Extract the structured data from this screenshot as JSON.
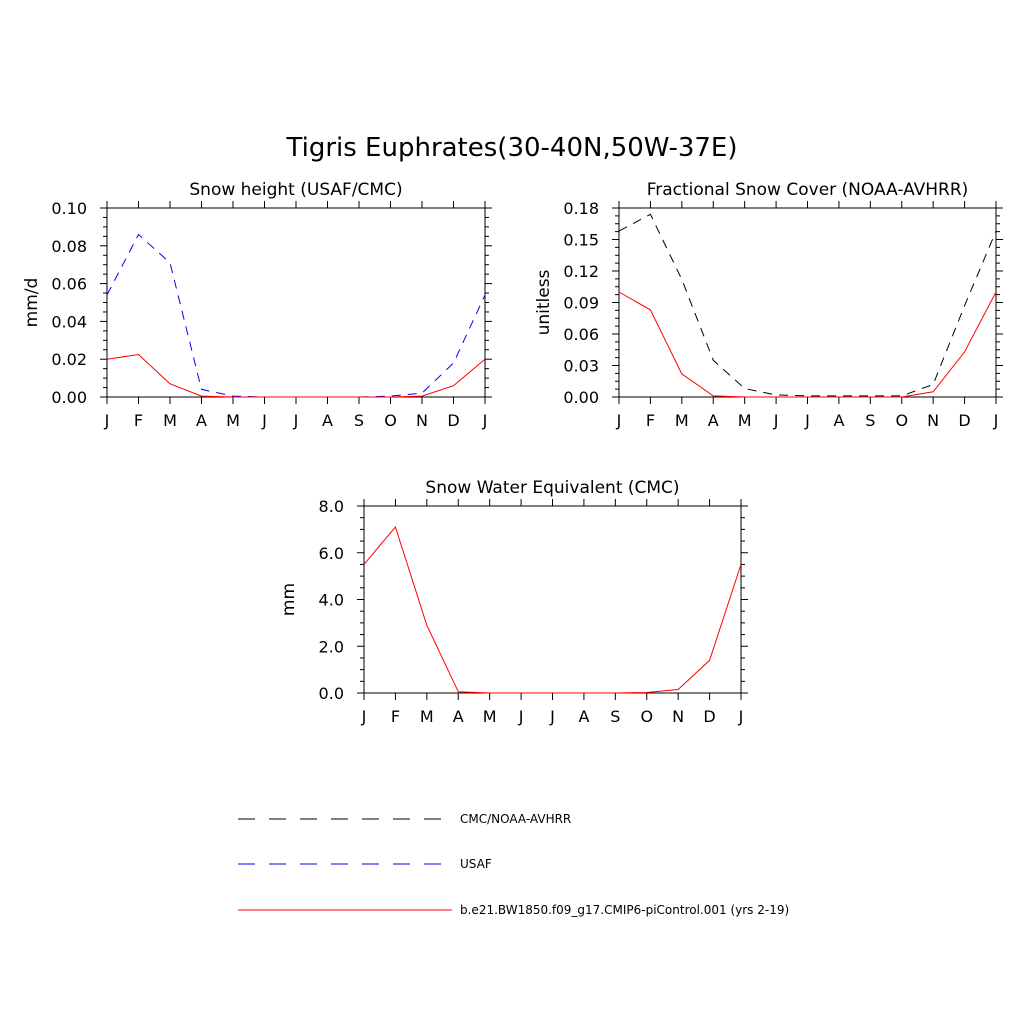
{
  "figure": {
    "title": "Tigris Euphrates(30-40N,50W-37E)"
  },
  "colors": {
    "obs": "#000000",
    "usaf": "#0000ff",
    "model": "#ff0000"
  },
  "chart_data": [
    {
      "type": "line",
      "title": "Snow height (USAF/CMC)",
      "xlabel": "",
      "ylabel": "mm/d",
      "x": [
        "J",
        "F",
        "M",
        "A",
        "M",
        "J",
        "J",
        "A",
        "S",
        "O",
        "N",
        "D",
        "J"
      ],
      "ylim": [
        0,
        0.1
      ],
      "yticks": [
        "0.00",
        "0.02",
        "0.04",
        "0.06",
        "0.08",
        "0.10"
      ],
      "grid": false,
      "series": [
        {
          "name": "CMC/NOAA-AVHRR",
          "style": "dashed",
          "color": "#000000",
          "values": [
            0,
            0,
            0,
            0,
            0,
            0,
            0,
            0,
            0,
            0,
            0,
            0,
            0
          ]
        },
        {
          "name": "USAF",
          "style": "dashed",
          "color": "#0000ff",
          "values": [
            0.054,
            0.086,
            0.071,
            0.004,
            0.0005,
            0,
            0,
            0,
            0,
            0.0005,
            0.002,
            0.018,
            0.054
          ]
        },
        {
          "name": "b.e21.BW1850.f09_g17.CMIP6-piControl.001 (yrs 2-19)",
          "style": "solid",
          "color": "#ff0000",
          "values": [
            0.02,
            0.0225,
            0.007,
            0.0005,
            0,
            0,
            0,
            0,
            0,
            0,
            0.0005,
            0.006,
            0.02
          ]
        }
      ]
    },
    {
      "type": "line",
      "title": "Fractional Snow Cover (NOAA-AVHRR)",
      "xlabel": "",
      "ylabel": "unitless",
      "x": [
        "J",
        "F",
        "M",
        "A",
        "M",
        "J",
        "J",
        "A",
        "S",
        "O",
        "N",
        "D",
        "J"
      ],
      "ylim": [
        0,
        0.18
      ],
      "yticks": [
        "0.00",
        "0.03",
        "0.06",
        "0.09",
        "0.12",
        "0.15",
        "0.18"
      ],
      "grid": false,
      "series": [
        {
          "name": "CMC/NOAA-AVHRR",
          "style": "dashed",
          "color": "#000000",
          "values": [
            0.158,
            0.174,
            0.112,
            0.035,
            0.008,
            0.002,
            0.001,
            0.001,
            0.001,
            0.001,
            0.012,
            0.087,
            0.158
          ]
        },
        {
          "name": "b.e21.BW1850.f09_g17.CMIP6-piControl.001 (yrs 2-19)",
          "style": "solid",
          "color": "#ff0000",
          "values": [
            0.1,
            0.083,
            0.022,
            0.001,
            0,
            0,
            0,
            0,
            0,
            0,
            0.005,
            0.043,
            0.1
          ]
        }
      ]
    },
    {
      "type": "line",
      "title": "Snow Water Equivalent (CMC)",
      "xlabel": "",
      "ylabel": "mm",
      "x": [
        "J",
        "F",
        "M",
        "A",
        "M",
        "J",
        "J",
        "A",
        "S",
        "O",
        "N",
        "D",
        "J"
      ],
      "ylim": [
        0,
        8.0
      ],
      "yticks": [
        "0.0",
        "2.0",
        "4.0",
        "6.0",
        "8.0"
      ],
      "grid": false,
      "series": [
        {
          "name": "CMC/NOAA-AVHRR",
          "style": "dashed",
          "color": "#000000",
          "values": [
            0,
            0,
            0,
            0,
            0,
            0,
            0,
            0,
            0,
            0,
            0,
            0,
            0
          ]
        },
        {
          "name": "b.e21.BW1850.f09_g17.CMIP6-piControl.001 (yrs 2-19)",
          "style": "solid",
          "color": "#ff0000",
          "values": [
            5.5,
            7.1,
            2.9,
            0.05,
            0,
            0,
            0,
            0,
            0,
            0.02,
            0.15,
            1.4,
            5.5
          ]
        }
      ]
    }
  ],
  "legend": {
    "placement": "bottom",
    "entries": [
      {
        "label": "CMC/NOAA-AVHRR",
        "style": "dashed",
        "color": "#000000"
      },
      {
        "label": "USAF",
        "style": "dashed",
        "color": "#0000ff"
      },
      {
        "label": "b.e21.BW1850.f09_g17.CMIP6-piControl.001 (yrs 2-19)",
        "style": "solid",
        "color": "#ff0000"
      }
    ]
  }
}
